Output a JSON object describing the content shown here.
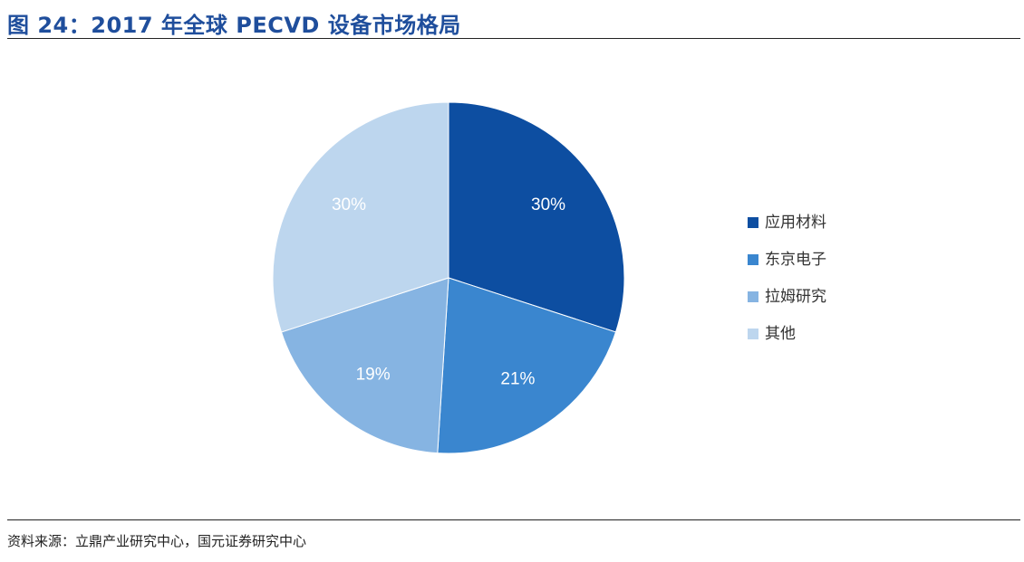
{
  "title": "图 24：2017 年全球 PECVD 设备市场格局",
  "source": "资料来源：立鼎产业研究中心，国元证券研究中心",
  "chart_data": {
    "type": "pie",
    "title": "",
    "legend_position": "right",
    "slices": [
      {
        "name": "应用材料",
        "value": 30,
        "label": "30%",
        "color": "#0d4ea1"
      },
      {
        "name": "东京电子",
        "value": 21,
        "label": "21%",
        "color": "#3a86cf"
      },
      {
        "name": "拉姆研究",
        "value": 19,
        "label": "19%",
        "color": "#86b4e2"
      },
      {
        "name": "其他",
        "value": 30,
        "label": "30%",
        "color": "#bdd6ee"
      }
    ]
  }
}
